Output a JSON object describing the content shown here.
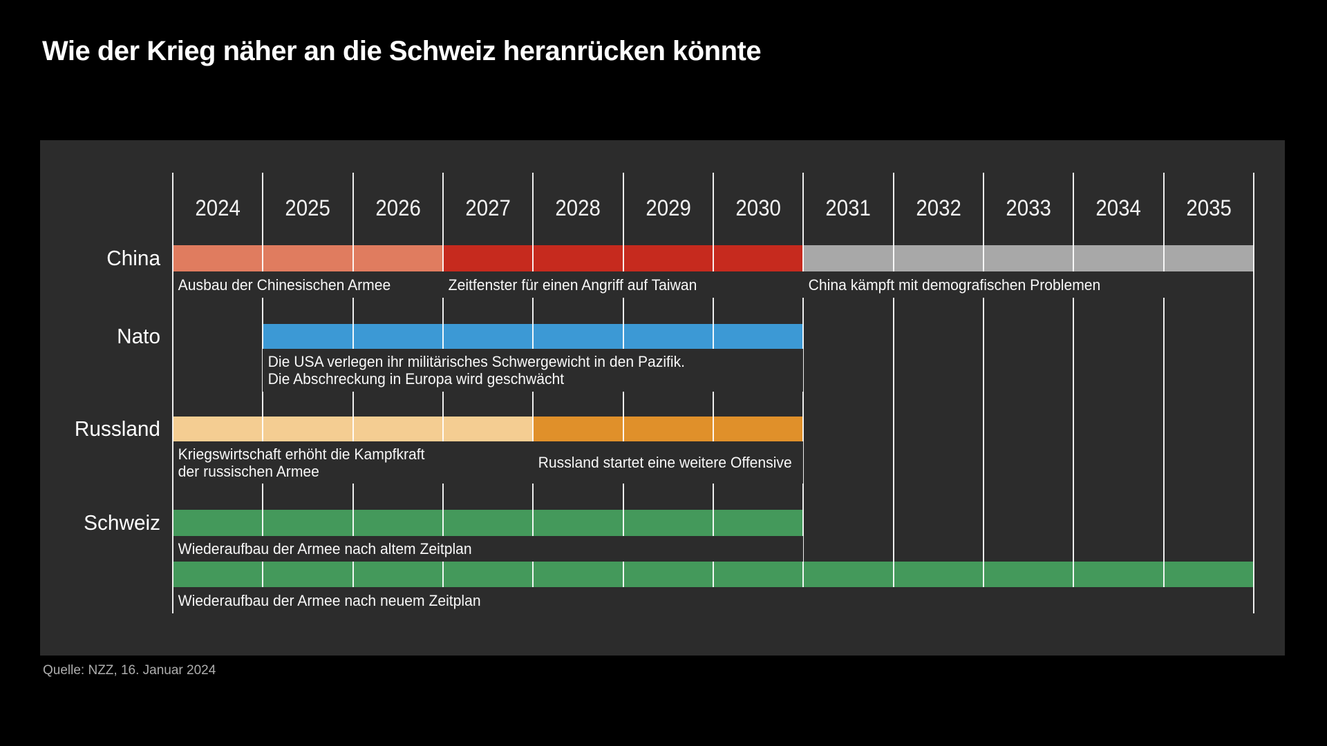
{
  "title": "Wie der Krieg näher an die Schweiz heranrücken könnte",
  "source": "Quelle: NZZ, 16. Januar 2024",
  "colors": {
    "background": "#000000",
    "panel": "#2c2c2c",
    "gridline": "#ffffff",
    "china_buildup": "#e07c5f",
    "china_attack_window": "#c62a1e",
    "china_demographics": "#a8a8a8",
    "nato": "#3c99d5",
    "russia_war_economy": "#f4cd92",
    "russia_offensive": "#e0902a",
    "switzerland": "#44995b"
  },
  "chart_data": {
    "type": "timeline",
    "title": "Wie der Krieg näher an die Schweiz heranrücken könnte",
    "x_axis": {
      "start_year": 2024,
      "end_year": 2036,
      "tick_labels": [
        "2024",
        "2025",
        "2026",
        "2027",
        "2028",
        "2029",
        "2030",
        "2031",
        "2032",
        "2033",
        "2034",
        "2035"
      ]
    },
    "grid": true,
    "rows": [
      {
        "label": "China",
        "segments": [
          {
            "from": 2024,
            "to": 2027,
            "color_key": "china_buildup",
            "annotation": "Ausbau der Chinesischen Armee"
          },
          {
            "from": 2027,
            "to": 2031,
            "color_key": "china_attack_window",
            "annotation": "Zeitfenster für einen Angriff auf Taiwan"
          },
          {
            "from": 2031,
            "to": 2036,
            "color_key": "china_demographics",
            "annotation": "China kämpft mit demografischen Problemen"
          }
        ]
      },
      {
        "label": "Nato",
        "segments": [
          {
            "from": 2025,
            "to": 2031,
            "color_key": "nato",
            "annotation": "Die USA verlegen ihr militärisches Schwergewicht in den Pazifik.\nDie Abschreckung in Europa wird geschwächt"
          }
        ]
      },
      {
        "label": "Russland",
        "segments": [
          {
            "from": 2024,
            "to": 2028,
            "color_key": "russia_war_economy",
            "annotation": "Kriegswirtschaft erhöht die Kampfkraft\nder russischen Armee"
          },
          {
            "from": 2028,
            "to": 2031,
            "color_key": "russia_offensive",
            "annotation": "Russland startet eine weitere Offensive"
          }
        ]
      },
      {
        "label": "Schweiz",
        "segments": [
          {
            "from": 2024,
            "to": 2031,
            "color_key": "switzerland",
            "annotation": "Wiederaufbau der Armee nach altem Zeitplan"
          }
        ]
      },
      {
        "label": "",
        "segments": [
          {
            "from": 2024,
            "to": 2036,
            "color_key": "switzerland",
            "annotation": "Wiederaufbau der Armee nach neuem Zeitplan"
          }
        ]
      }
    ]
  }
}
